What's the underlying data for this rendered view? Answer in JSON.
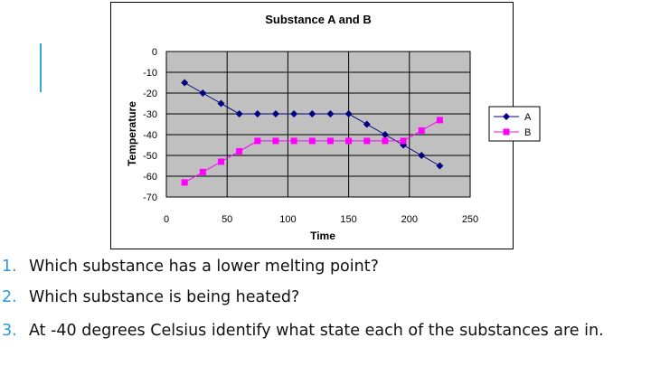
{
  "chart_data": {
    "type": "line",
    "title": "Substance A and B",
    "xlabel": "Time",
    "ylabel": "Temperature",
    "xlim": [
      0,
      250
    ],
    "ylim": [
      -70,
      0
    ],
    "x_ticks": [
      "0",
      "50",
      "100",
      "150",
      "200",
      "250"
    ],
    "y_ticks": [
      "0",
      "-10",
      "-20",
      "-30",
      "-40",
      "-50",
      "-60",
      "-70"
    ],
    "grid": true,
    "legend_position": "right",
    "series": [
      {
        "name": "A",
        "color": "#000080",
        "marker": "diamond",
        "x": [
          15,
          30,
          45,
          60,
          75,
          90,
          105,
          120,
          135,
          150,
          165,
          180,
          195,
          210,
          225
        ],
        "y": [
          -15,
          -20,
          -25,
          -30,
          -30,
          -30,
          -30,
          -30,
          -30,
          -30,
          -35,
          -40,
          -45,
          -50,
          -55
        ]
      },
      {
        "name": "B",
        "color": "#ff00ff",
        "marker": "square",
        "x": [
          15,
          30,
          45,
          60,
          75,
          90,
          105,
          120,
          135,
          150,
          165,
          180,
          195,
          210,
          225
        ],
        "y": [
          -63,
          -58,
          -53,
          -48,
          -43,
          -43,
          -43,
          -43,
          -43,
          -43,
          -43,
          -43,
          -43,
          -38,
          -33
        ]
      }
    ]
  },
  "colors": {
    "plot_bg": "#c0c0c0",
    "accent": "#3aa3d6"
  },
  "questions": [
    {
      "number": "1.",
      "text": "Which substance has a lower melting point?"
    },
    {
      "number": "2.",
      "text": "Which substance is being heated?"
    },
    {
      "number": "3.",
      "text": "At -40 degrees Celsius identify what state each of the substances are in."
    }
  ]
}
